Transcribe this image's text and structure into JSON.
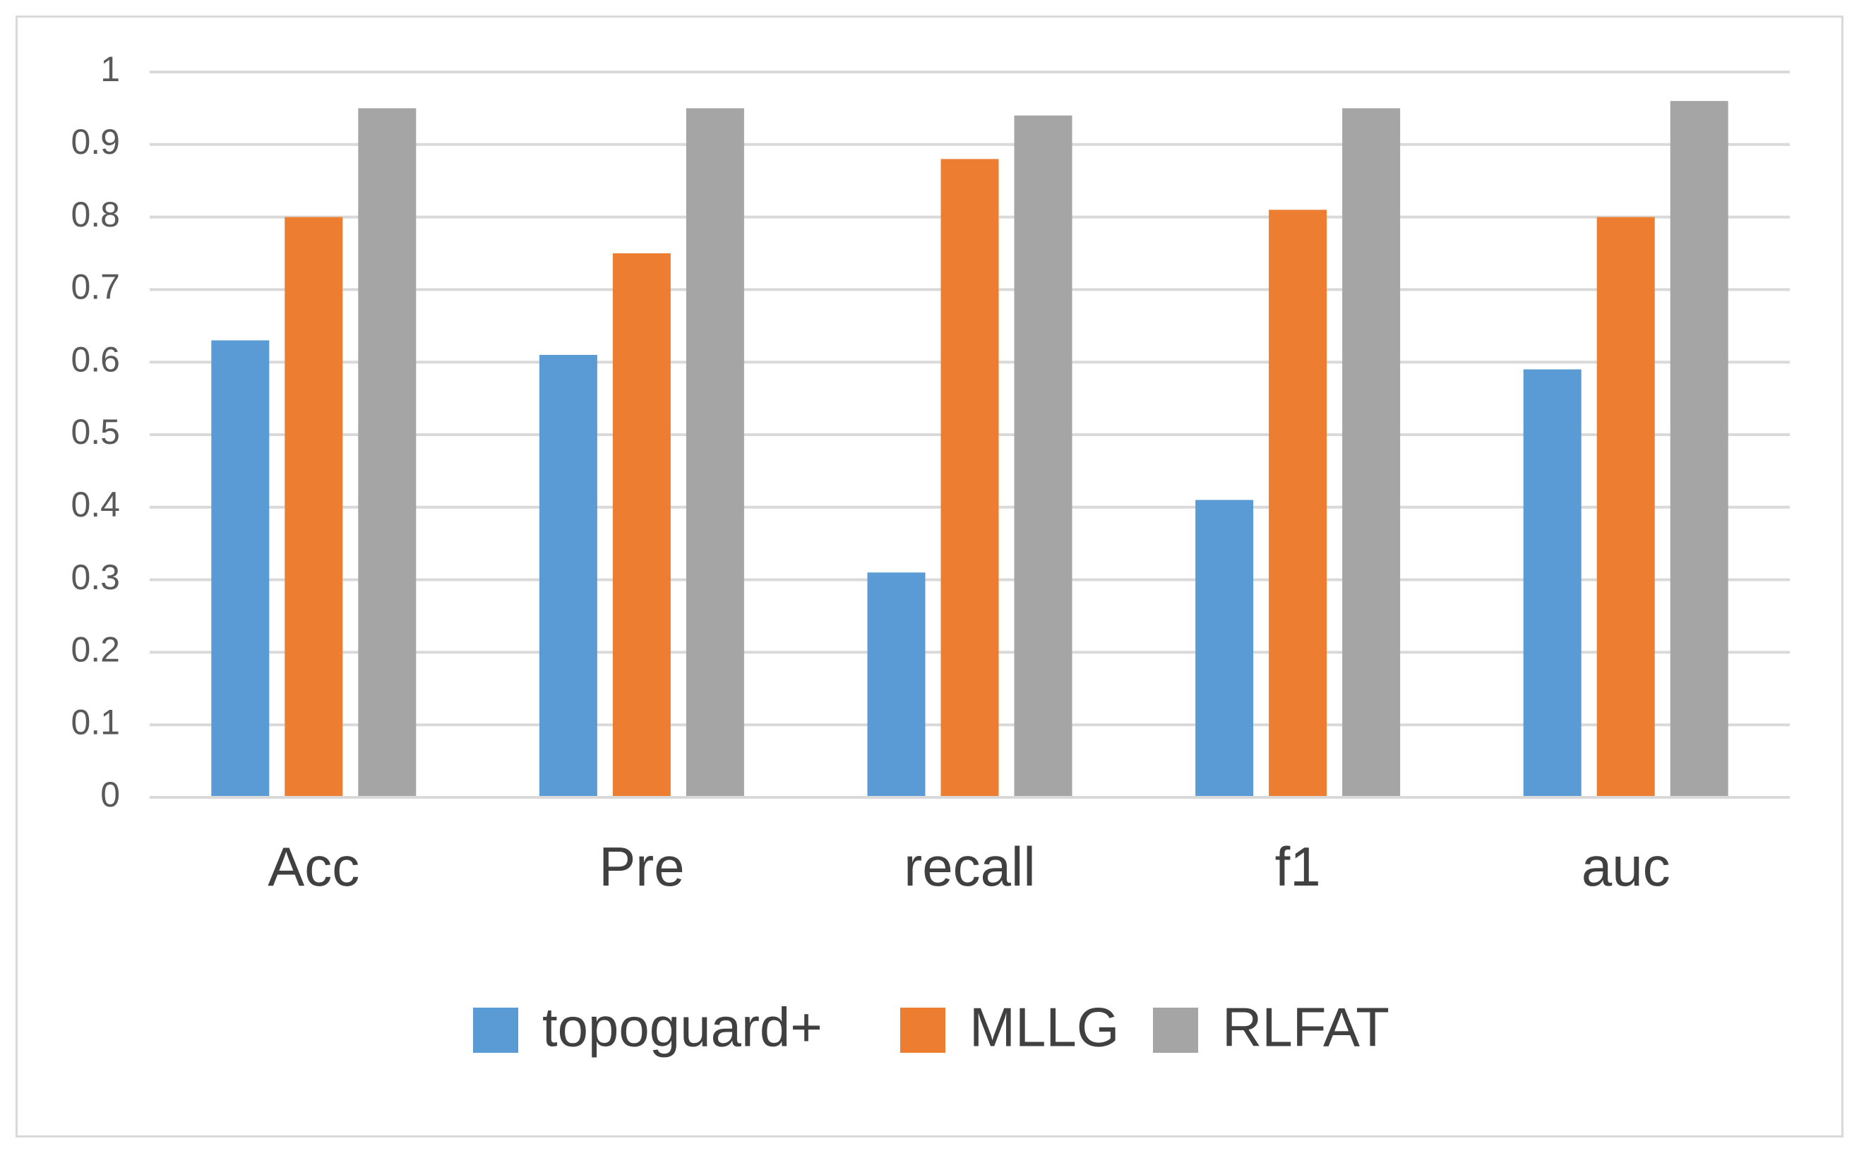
{
  "chart_data": {
    "type": "bar",
    "categories": [
      "Acc",
      "Pre",
      "recall",
      "f1",
      "auc"
    ],
    "series": [
      {
        "name": "topoguard+",
        "color": "#5b9bd5",
        "values": [
          0.63,
          0.61,
          0.31,
          0.41,
          0.59
        ]
      },
      {
        "name": "MLLG",
        "color": "#ed7d31",
        "values": [
          0.8,
          0.75,
          0.88,
          0.81,
          0.8
        ]
      },
      {
        "name": "RLFAT",
        "color": "#a5a5a5",
        "values": [
          0.95,
          0.95,
          0.94,
          0.95,
          0.96
        ]
      }
    ],
    "y_ticks": [
      "0",
      "0.1",
      "0.2",
      "0.3",
      "0.4",
      "0.5",
      "0.6",
      "0.7",
      "0.8",
      "0.9",
      "1"
    ],
    "ylim": [
      0,
      1
    ],
    "grid": true,
    "gridline_color": "#d9d9d9",
    "legend_position": "bottom",
    "title": "",
    "xlabel": "",
    "ylabel": ""
  }
}
